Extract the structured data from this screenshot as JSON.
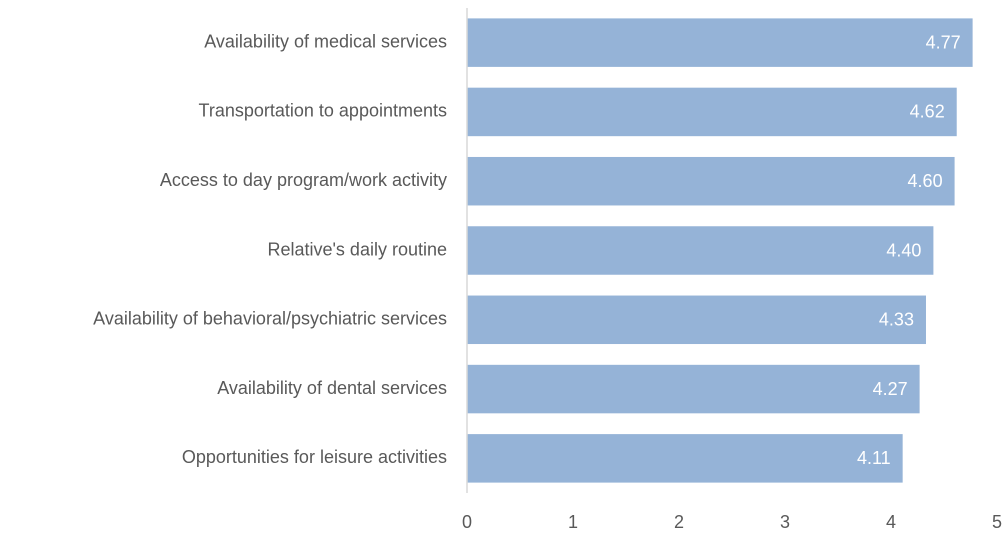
{
  "chart_data": {
    "type": "bar",
    "orientation": "horizontal",
    "categories": [
      "Availability of medical services",
      "Transportation to appointments",
      "Access to day program/work activity",
      "Relative's daily routine",
      "Availability of behavioral/psychiatric services",
      "Availability of dental services",
      "Opportunities for leisure activities"
    ],
    "values": [
      4.77,
      4.62,
      4.6,
      4.4,
      4.33,
      4.27,
      4.11
    ],
    "value_labels": [
      "4.77",
      "4.62",
      "4.60",
      "4.40",
      "4.33",
      "4.27",
      "4.11"
    ],
    "color": "#95b3d7",
    "xlim": [
      0,
      5
    ],
    "xticks": [
      0,
      1,
      2,
      3,
      4,
      5
    ],
    "grid": false
  }
}
